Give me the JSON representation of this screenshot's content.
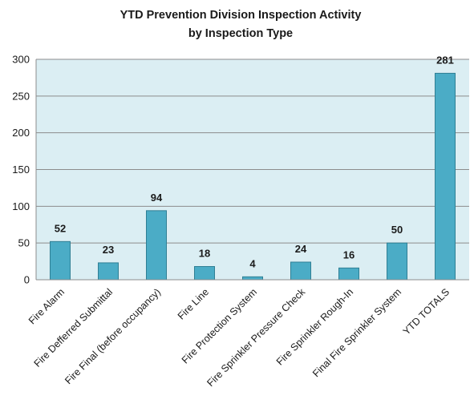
{
  "chart_data": {
    "type": "bar",
    "title": [
      "YTD Prevention Division  Inspection Activity",
      "by Inspection Type"
    ],
    "categories": [
      "Fire Alarm",
      "Fire Defferred Submittal",
      "Fire Final (before occupancy)",
      "Fire Line",
      "Fire Protection System",
      "Fire Sprinkler Pressure Check",
      "Fire Sprinkler Rough-In",
      "Final Fire Sprinkler System",
      "YTD TOTALS"
    ],
    "values": [
      52,
      23,
      94,
      18,
      4,
      24,
      16,
      50,
      281
    ],
    "ylim": [
      0,
      300
    ],
    "yticks": [
      0,
      50,
      100,
      150,
      200,
      250,
      300
    ],
    "grid": true,
    "legend": "none",
    "colors": {
      "bar_fill": "#4bacc6",
      "bar_stroke": "#2f7f94",
      "plot_background": "#dbeef3",
      "gridline": "#8c8c8c"
    }
  }
}
